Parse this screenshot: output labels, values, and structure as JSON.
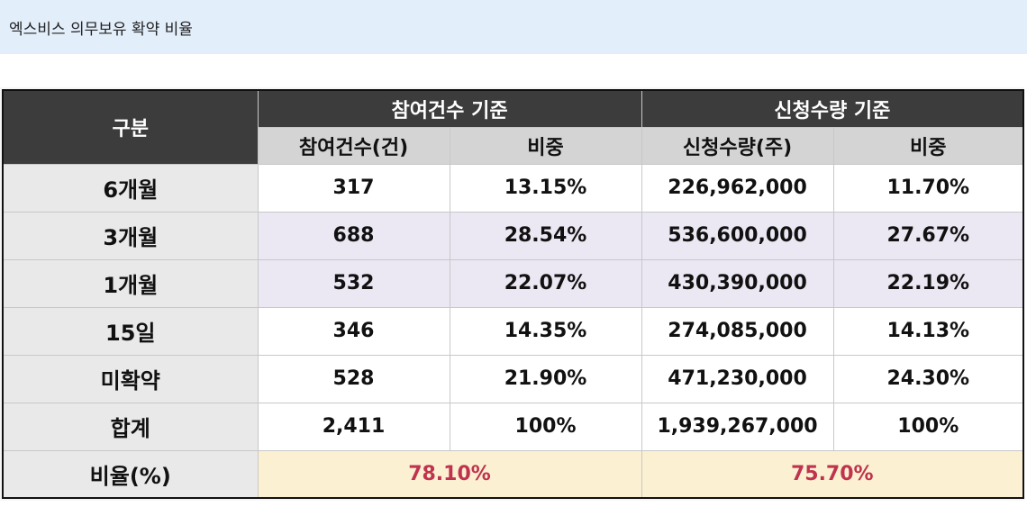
{
  "title": "엑스비스 의무보유 확약 비율",
  "header": {
    "category": "구분",
    "group1": "참여건수 기준",
    "group2": "신청수량 기준",
    "sub1": "참여건수(건)",
    "sub2": "비중",
    "sub3": "신청수량(주)",
    "sub4": "비중"
  },
  "rows": [
    {
      "label": "6개월",
      "count": "317",
      "count_pct": "13.15%",
      "qty": "226,962,000",
      "qty_pct": "11.70%"
    },
    {
      "label": "3개월",
      "count": "688",
      "count_pct": "28.54%",
      "qty": "536,600,000",
      "qty_pct": "27.67%"
    },
    {
      "label": "1개월",
      "count": "532",
      "count_pct": "22.07%",
      "qty": "430,390,000",
      "qty_pct": "22.19%"
    },
    {
      "label": "15일",
      "count": "346",
      "count_pct": "14.35%",
      "qty": "274,085,000",
      "qty_pct": "14.13%"
    },
    {
      "label": "미확약",
      "count": "528",
      "count_pct": "21.90%",
      "qty": "471,230,000",
      "qty_pct": "24.30%"
    },
    {
      "label": "합계",
      "count": "2,411",
      "count_pct": "100%",
      "qty": "1,939,267,000",
      "qty_pct": "100%"
    }
  ],
  "ratio": {
    "label": "비율(%)",
    "count_ratio": "78.10%",
    "qty_ratio": "75.70%"
  },
  "colors": {
    "header_dark": "#3c3c3c",
    "header_sub": "#d4d4d4",
    "shade": "#ebe7f3",
    "ratio_bg": "#fbf1d2",
    "ratio_text": "#c0334e",
    "title_bg": "#e3eefb"
  }
}
